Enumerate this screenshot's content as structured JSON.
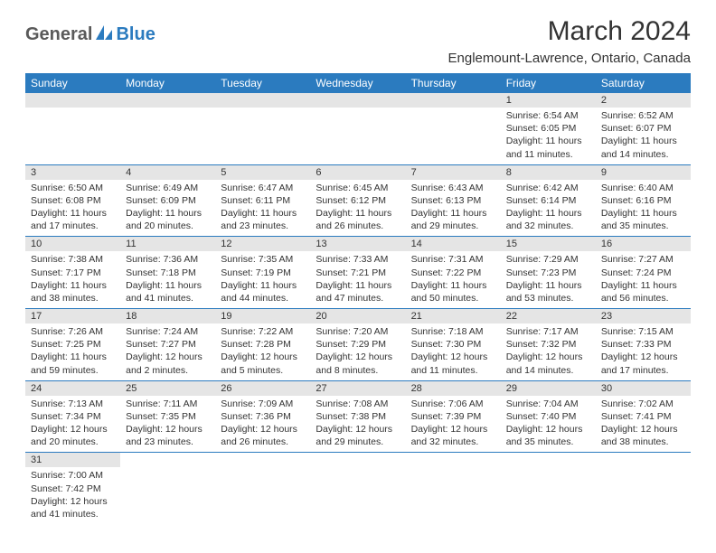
{
  "logo": {
    "text1": "General",
    "text2": "Blue",
    "color1": "#5a5a5a",
    "color2": "#2b7bbf"
  },
  "title": "March 2024",
  "location": "Englemount-Lawrence, Ontario, Canada",
  "header_bg": "#2b7bbf",
  "header_fg": "#ffffff",
  "daynum_bg": "#e5e5e5",
  "divider_color": "#2b7bbf",
  "day_headers": [
    "Sunday",
    "Monday",
    "Tuesday",
    "Wednesday",
    "Thursday",
    "Friday",
    "Saturday"
  ],
  "weeks": [
    [
      null,
      null,
      null,
      null,
      null,
      {
        "n": "1",
        "sunrise": "Sunrise: 6:54 AM",
        "sunset": "Sunset: 6:05 PM",
        "daylight1": "Daylight: 11 hours",
        "daylight2": "and 11 minutes."
      },
      {
        "n": "2",
        "sunrise": "Sunrise: 6:52 AM",
        "sunset": "Sunset: 6:07 PM",
        "daylight1": "Daylight: 11 hours",
        "daylight2": "and 14 minutes."
      }
    ],
    [
      {
        "n": "3",
        "sunrise": "Sunrise: 6:50 AM",
        "sunset": "Sunset: 6:08 PM",
        "daylight1": "Daylight: 11 hours",
        "daylight2": "and 17 minutes."
      },
      {
        "n": "4",
        "sunrise": "Sunrise: 6:49 AM",
        "sunset": "Sunset: 6:09 PM",
        "daylight1": "Daylight: 11 hours",
        "daylight2": "and 20 minutes."
      },
      {
        "n": "5",
        "sunrise": "Sunrise: 6:47 AM",
        "sunset": "Sunset: 6:11 PM",
        "daylight1": "Daylight: 11 hours",
        "daylight2": "and 23 minutes."
      },
      {
        "n": "6",
        "sunrise": "Sunrise: 6:45 AM",
        "sunset": "Sunset: 6:12 PM",
        "daylight1": "Daylight: 11 hours",
        "daylight2": "and 26 minutes."
      },
      {
        "n": "7",
        "sunrise": "Sunrise: 6:43 AM",
        "sunset": "Sunset: 6:13 PM",
        "daylight1": "Daylight: 11 hours",
        "daylight2": "and 29 minutes."
      },
      {
        "n": "8",
        "sunrise": "Sunrise: 6:42 AM",
        "sunset": "Sunset: 6:14 PM",
        "daylight1": "Daylight: 11 hours",
        "daylight2": "and 32 minutes."
      },
      {
        "n": "9",
        "sunrise": "Sunrise: 6:40 AM",
        "sunset": "Sunset: 6:16 PM",
        "daylight1": "Daylight: 11 hours",
        "daylight2": "and 35 minutes."
      }
    ],
    [
      {
        "n": "10",
        "sunrise": "Sunrise: 7:38 AM",
        "sunset": "Sunset: 7:17 PM",
        "daylight1": "Daylight: 11 hours",
        "daylight2": "and 38 minutes."
      },
      {
        "n": "11",
        "sunrise": "Sunrise: 7:36 AM",
        "sunset": "Sunset: 7:18 PM",
        "daylight1": "Daylight: 11 hours",
        "daylight2": "and 41 minutes."
      },
      {
        "n": "12",
        "sunrise": "Sunrise: 7:35 AM",
        "sunset": "Sunset: 7:19 PM",
        "daylight1": "Daylight: 11 hours",
        "daylight2": "and 44 minutes."
      },
      {
        "n": "13",
        "sunrise": "Sunrise: 7:33 AM",
        "sunset": "Sunset: 7:21 PM",
        "daylight1": "Daylight: 11 hours",
        "daylight2": "and 47 minutes."
      },
      {
        "n": "14",
        "sunrise": "Sunrise: 7:31 AM",
        "sunset": "Sunset: 7:22 PM",
        "daylight1": "Daylight: 11 hours",
        "daylight2": "and 50 minutes."
      },
      {
        "n": "15",
        "sunrise": "Sunrise: 7:29 AM",
        "sunset": "Sunset: 7:23 PM",
        "daylight1": "Daylight: 11 hours",
        "daylight2": "and 53 minutes."
      },
      {
        "n": "16",
        "sunrise": "Sunrise: 7:27 AM",
        "sunset": "Sunset: 7:24 PM",
        "daylight1": "Daylight: 11 hours",
        "daylight2": "and 56 minutes."
      }
    ],
    [
      {
        "n": "17",
        "sunrise": "Sunrise: 7:26 AM",
        "sunset": "Sunset: 7:25 PM",
        "daylight1": "Daylight: 11 hours",
        "daylight2": "and 59 minutes."
      },
      {
        "n": "18",
        "sunrise": "Sunrise: 7:24 AM",
        "sunset": "Sunset: 7:27 PM",
        "daylight1": "Daylight: 12 hours",
        "daylight2": "and 2 minutes."
      },
      {
        "n": "19",
        "sunrise": "Sunrise: 7:22 AM",
        "sunset": "Sunset: 7:28 PM",
        "daylight1": "Daylight: 12 hours",
        "daylight2": "and 5 minutes."
      },
      {
        "n": "20",
        "sunrise": "Sunrise: 7:20 AM",
        "sunset": "Sunset: 7:29 PM",
        "daylight1": "Daylight: 12 hours",
        "daylight2": "and 8 minutes."
      },
      {
        "n": "21",
        "sunrise": "Sunrise: 7:18 AM",
        "sunset": "Sunset: 7:30 PM",
        "daylight1": "Daylight: 12 hours",
        "daylight2": "and 11 minutes."
      },
      {
        "n": "22",
        "sunrise": "Sunrise: 7:17 AM",
        "sunset": "Sunset: 7:32 PM",
        "daylight1": "Daylight: 12 hours",
        "daylight2": "and 14 minutes."
      },
      {
        "n": "23",
        "sunrise": "Sunrise: 7:15 AM",
        "sunset": "Sunset: 7:33 PM",
        "daylight1": "Daylight: 12 hours",
        "daylight2": "and 17 minutes."
      }
    ],
    [
      {
        "n": "24",
        "sunrise": "Sunrise: 7:13 AM",
        "sunset": "Sunset: 7:34 PM",
        "daylight1": "Daylight: 12 hours",
        "daylight2": "and 20 minutes."
      },
      {
        "n": "25",
        "sunrise": "Sunrise: 7:11 AM",
        "sunset": "Sunset: 7:35 PM",
        "daylight1": "Daylight: 12 hours",
        "daylight2": "and 23 minutes."
      },
      {
        "n": "26",
        "sunrise": "Sunrise: 7:09 AM",
        "sunset": "Sunset: 7:36 PM",
        "daylight1": "Daylight: 12 hours",
        "daylight2": "and 26 minutes."
      },
      {
        "n": "27",
        "sunrise": "Sunrise: 7:08 AM",
        "sunset": "Sunset: 7:38 PM",
        "daylight1": "Daylight: 12 hours",
        "daylight2": "and 29 minutes."
      },
      {
        "n": "28",
        "sunrise": "Sunrise: 7:06 AM",
        "sunset": "Sunset: 7:39 PM",
        "daylight1": "Daylight: 12 hours",
        "daylight2": "and 32 minutes."
      },
      {
        "n": "29",
        "sunrise": "Sunrise: 7:04 AM",
        "sunset": "Sunset: 7:40 PM",
        "daylight1": "Daylight: 12 hours",
        "daylight2": "and 35 minutes."
      },
      {
        "n": "30",
        "sunrise": "Sunrise: 7:02 AM",
        "sunset": "Sunset: 7:41 PM",
        "daylight1": "Daylight: 12 hours",
        "daylight2": "and 38 minutes."
      }
    ],
    [
      {
        "n": "31",
        "sunrise": "Sunrise: 7:00 AM",
        "sunset": "Sunset: 7:42 PM",
        "daylight1": "Daylight: 12 hours",
        "daylight2": "and 41 minutes."
      },
      null,
      null,
      null,
      null,
      null,
      null
    ]
  ]
}
